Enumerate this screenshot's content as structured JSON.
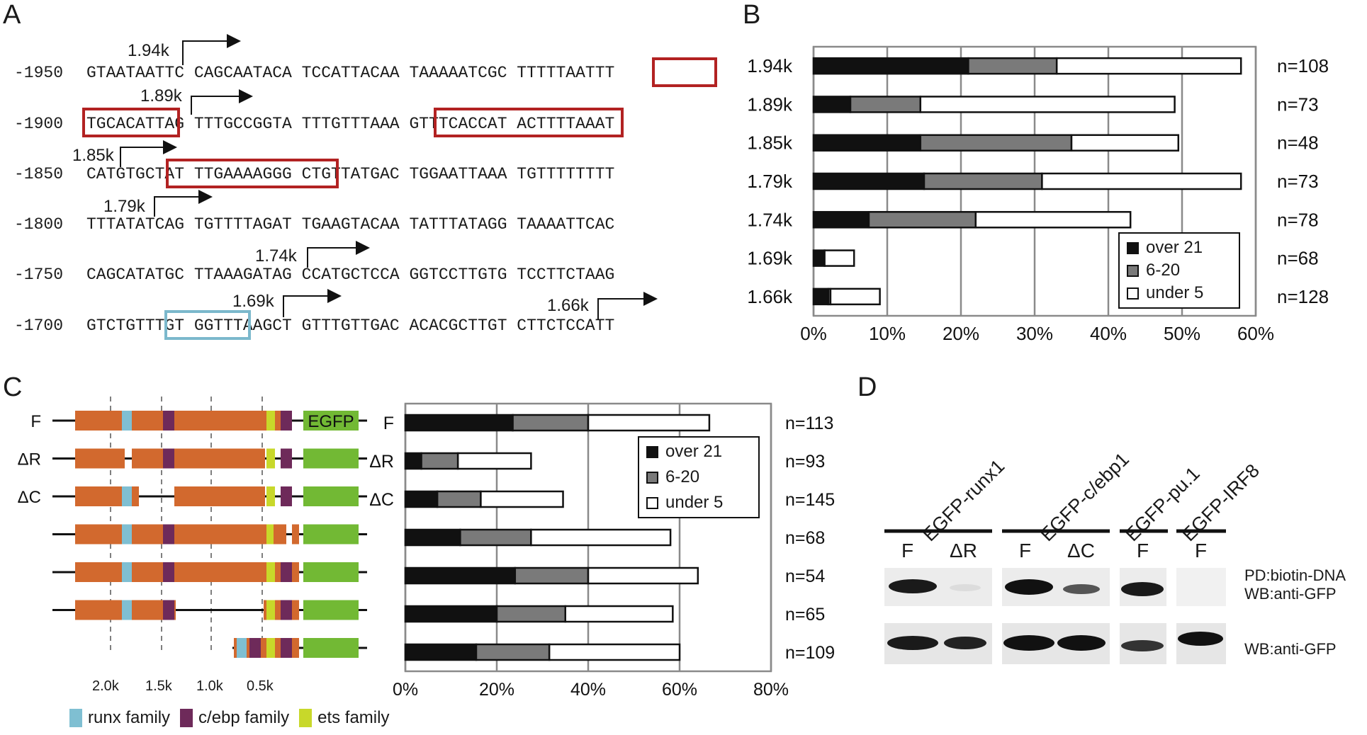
{
  "panels": {
    "a": "A",
    "b": "B",
    "c": "C",
    "d": "D"
  },
  "panel_a": {
    "rows": [
      {
        "pos": "-1950",
        "seq": "GTAATAATTC CAGCAATACA TCCATTACAA TAAAAATCGC TTTTTAATTT"
      },
      {
        "pos": "-1900",
        "seq": "TGCACATTAG TTTGCCGGTA TTTGTTTAAA GTTTCACCAT ACTTTTAAAT"
      },
      {
        "pos": "-1850",
        "seq": "CATGTGCTAT TTGAAAAGGG CTGTTATGAC TGGAATTAAA TGTTTTTTTT"
      },
      {
        "pos": "-1800",
        "seq": "TTTATATCAG TGTTTTAGAT TGAAGTACAA TATTTATAGG TAAAATTCAC"
      },
      {
        "pos": "-1750",
        "seq": "CAGCATATGC TTAAAGATAG CCATGCTCCA GGTCCTTGTG TCCTTCTAAG"
      },
      {
        "pos": "-1700",
        "seq": "GTCTGTTTGT GGTTTAAGCT GTTTGTTGAC ACACGCTTGT CTTCTCCATT"
      }
    ],
    "tss": [
      "1.94k",
      "1.89k",
      "1.85k",
      "1.79k",
      "1.74k",
      "1.69k",
      "1.66k"
    ]
  },
  "legend": {
    "over": "over 21",
    "mid": "6-20",
    "under": "under 5"
  },
  "colors": {
    "black": "#111111",
    "gray": "#7a7a7a",
    "white": "#ffffff",
    "red_box": "#b22222",
    "blue_box": "#7bb8cc",
    "orange": "#d2692e",
    "runx": "#7fbfd2",
    "cebp": "#6e2a5a",
    "ets": "#c8d82a",
    "egfp": "#72b934"
  },
  "chart_data": [
    {
      "type": "bar",
      "orientation": "horizontal-stacked",
      "categories": [
        "1.94k",
        "1.89k",
        "1.85k",
        "1.79k",
        "1.74k",
        "1.69k",
        "1.66k"
      ],
      "n_labels": [
        "n=108",
        "n=73",
        "n=48",
        "n=73",
        "n=78",
        "n=68",
        "n=128"
      ],
      "series": [
        {
          "name": "over 21",
          "values": [
            21,
            5,
            14.5,
            15,
            7.5,
            1.5,
            2
          ]
        },
        {
          "name": "6-20",
          "values": [
            12,
            9.5,
            20.5,
            16,
            14.5,
            0,
            0.3
          ]
        },
        {
          "name": "under 5",
          "values": [
            25,
            34.5,
            14.5,
            27,
            21,
            4,
            6.7
          ]
        }
      ],
      "xticks": [
        "0%",
        "10%",
        "20%",
        "30%",
        "40%",
        "50%",
        "60%"
      ],
      "xlim": [
        0,
        60
      ],
      "legend_placement": "bottom-right",
      "grid": true
    },
    {
      "type": "bar",
      "orientation": "horizontal-stacked",
      "categories": [
        "F",
        "ΔR",
        "ΔC",
        "",
        "",
        "",
        ""
      ],
      "n_labels": [
        "n=113",
        "n=93",
        "n=145",
        "n=68",
        "n=54",
        "n=65",
        "n=109"
      ],
      "series": [
        {
          "name": "over 21",
          "values": [
            23.5,
            3.5,
            7,
            12,
            24,
            20,
            15.5
          ]
        },
        {
          "name": "6-20",
          "values": [
            16.5,
            8,
            9.5,
            15.5,
            16,
            15,
            16
          ]
        },
        {
          "name": "under 5",
          "values": [
            26.5,
            16,
            18,
            30.5,
            24,
            23.5,
            28.5
          ]
        }
      ],
      "xticks": [
        "0%",
        "20%",
        "40%",
        "60%",
        "80%"
      ],
      "xlim": [
        0,
        80
      ],
      "legend_placement": "top-right",
      "grid": true
    }
  ],
  "panel_c": {
    "construct_labels": [
      "F",
      "ΔR",
      "ΔC",
      "",
      "",
      "",
      ""
    ],
    "egfp_label": "EGFP",
    "kb_ticks": [
      "2.0k",
      "1.5k",
      "1.0k",
      "0.5k"
    ],
    "families": [
      "runx family",
      "c/ebp family",
      "ets family"
    ]
  },
  "panel_d": {
    "proteins": [
      "EGFP-runx1",
      "EGFP-c/ebp1",
      "EGFP-pu.1",
      "EGFP-IRF8"
    ],
    "lanes": [
      "F",
      "ΔR",
      "F",
      "ΔC",
      "F",
      "F"
    ],
    "wb_top_line1": "PD:biotin-DNA",
    "wb_top_line2": "WB:anti-GFP",
    "wb_bottom": "WB:anti-GFP"
  }
}
